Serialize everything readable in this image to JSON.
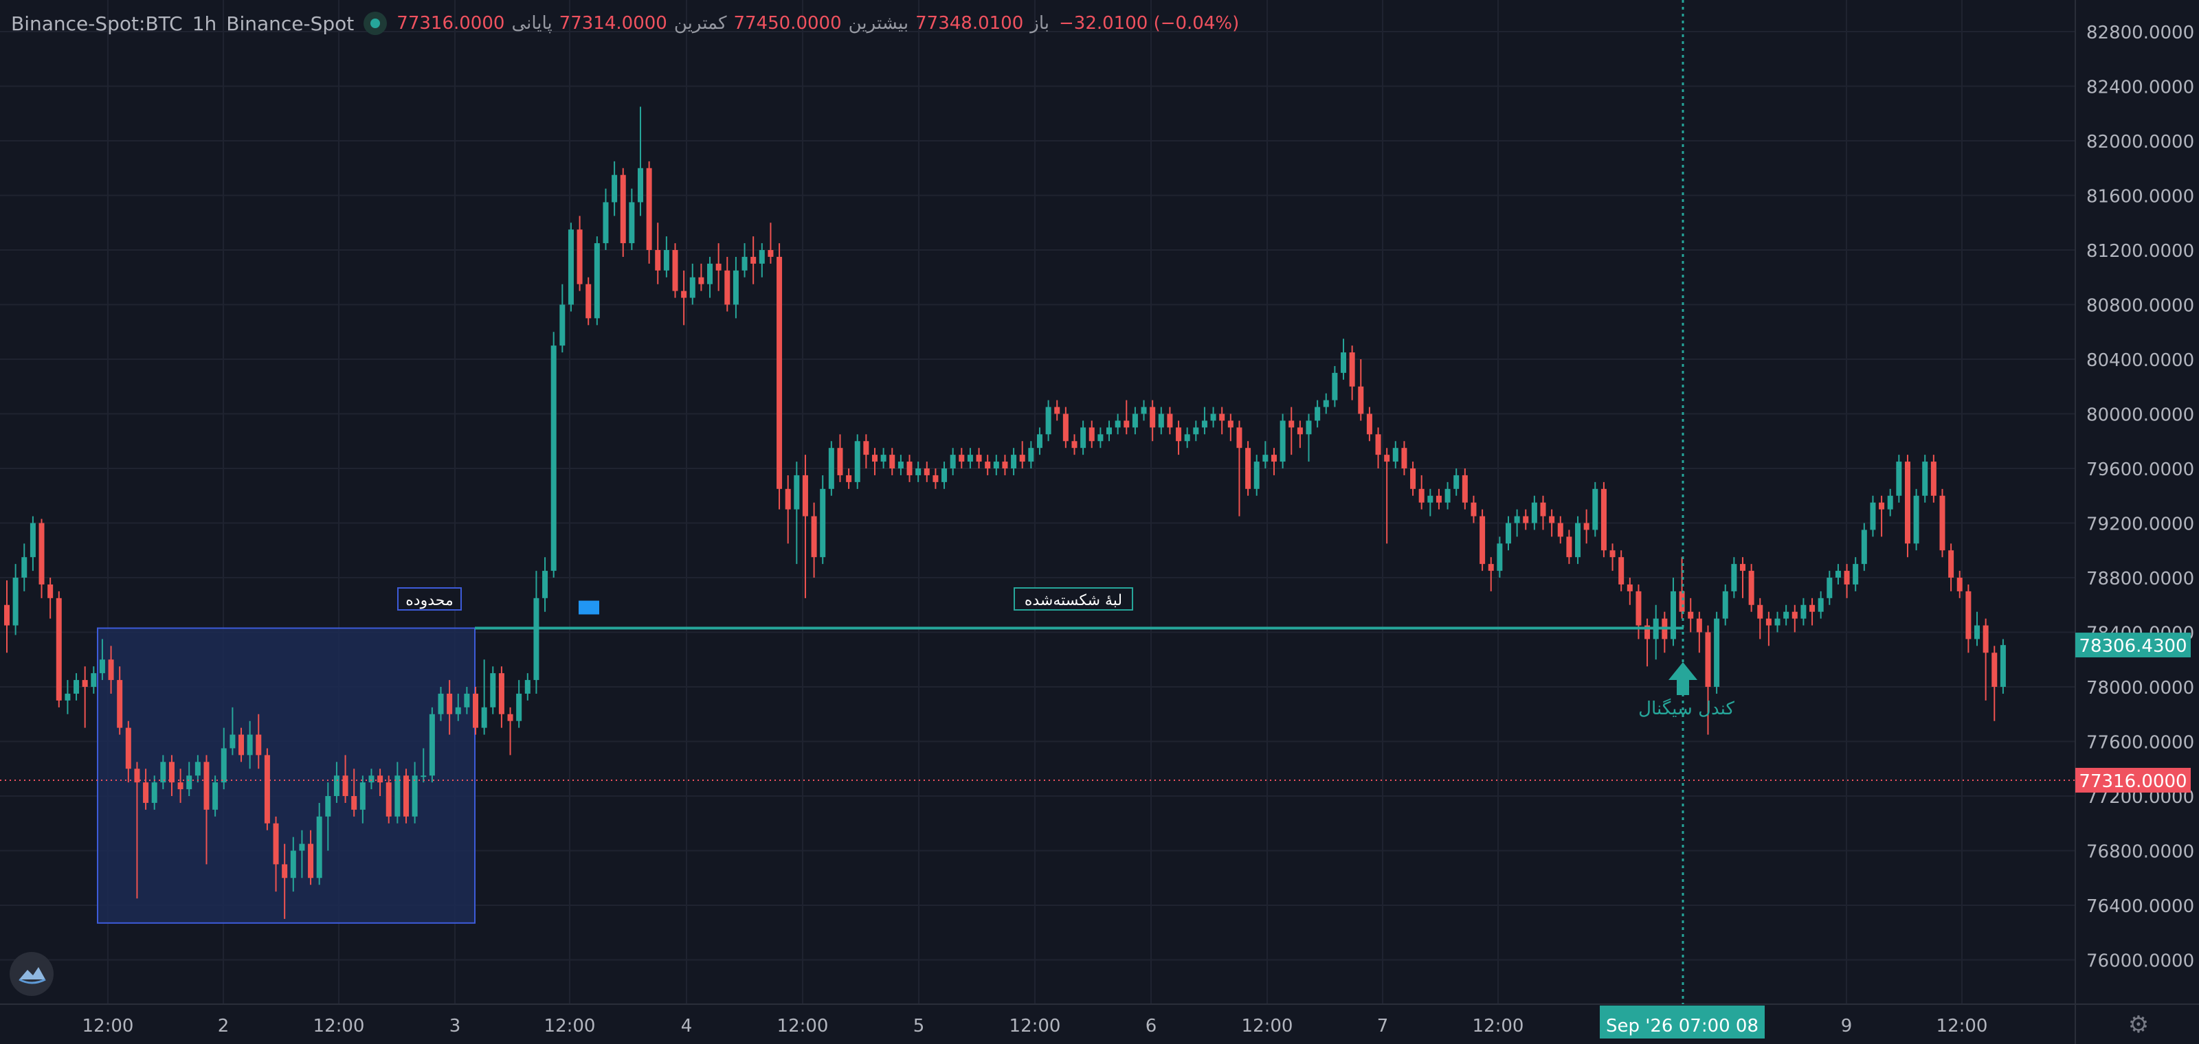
{
  "legend": {
    "symbol": "Binance-Spot:BTC",
    "interval": "1h",
    "exchange": "Binance-Spot",
    "open_label": "باز",
    "open": "77348.0100",
    "high_label": "بیشترین",
    "high": "77450.0000",
    "low_label": "کمترین",
    "low": "77314.0000",
    "close_label": "پایانی",
    "close": "77316.0000",
    "change": "−32.0100 (−0.04%)"
  },
  "colors": {
    "background": "#131722",
    "up": "#26a69a",
    "down": "#ef5350",
    "box_fill": "#1c2a52",
    "box_border": "#3d5bd9",
    "level_line": "#26a69a",
    "grid": "#1f2330",
    "axis_text": "#b2b5be",
    "price_label_red": "#f0525f",
    "price_label_green": "#26a69a"
  },
  "icons": {
    "settings": "gear-icon",
    "logo": "brand-logo-icon"
  },
  "chart_data": {
    "type": "candlestick",
    "y_ticks": [
      82800,
      82400,
      82000,
      81600,
      81200,
      80800,
      80400,
      80000,
      79600,
      79200,
      78800,
      78400,
      78000,
      77600,
      77200,
      76800,
      76400,
      76000
    ],
    "y_tick_labels": [
      "82800.0000",
      "82400.0000",
      "82000.0000",
      "81600.0000",
      "81200.0000",
      "80800.0000",
      "80400.0000",
      "80000.0000",
      "79600.0000",
      "79200.0000",
      "78800.0000",
      "78400.0000",
      "78000.0000",
      "77600.0000",
      "77200.0000",
      "76800.0000",
      "76400.0000",
      "76000.0000"
    ],
    "x_ticks": [
      "12:00",
      "2",
      "12:00",
      "3",
      "12:00",
      "4",
      "12:00",
      "5",
      "12:00",
      "6",
      "12:00",
      "7",
      "12:00",
      "9",
      "12:00"
    ],
    "candles": [
      [
        78600,
        78450,
        78780,
        78250
      ],
      [
        78450,
        78800,
        78900,
        78380
      ],
      [
        78800,
        78950,
        79050,
        78700
      ],
      [
        78950,
        79200,
        79250,
        78850
      ],
      [
        79200,
        78750,
        79230,
        78650
      ],
      [
        78750,
        78650,
        78800,
        78500
      ],
      [
        78650,
        77900,
        78700,
        77850
      ],
      [
        77900,
        77950,
        78050,
        77800
      ],
      [
        77950,
        78050,
        78100,
        77900
      ],
      [
        78050,
        78000,
        78150,
        77700
      ],
      [
        78000,
        78100,
        78150,
        77950
      ],
      [
        78100,
        78200,
        78350,
        78050
      ],
      [
        78200,
        78050,
        78300,
        77950
      ],
      [
        78050,
        77700,
        78150,
        77650
      ],
      [
        77700,
        77400,
        77750,
        77300
      ],
      [
        77400,
        77300,
        77450,
        76450
      ],
      [
        77300,
        77150,
        77400,
        77100
      ],
      [
        77150,
        77300,
        77350,
        77100
      ],
      [
        77300,
        77450,
        77500,
        77250
      ],
      [
        77450,
        77300,
        77500,
        77200
      ],
      [
        77300,
        77250,
        77400,
        77150
      ],
      [
        77250,
        77350,
        77450,
        77200
      ],
      [
        77350,
        77450,
        77500,
        77300
      ],
      [
        77450,
        77100,
        77500,
        76700
      ],
      [
        77100,
        77300,
        77350,
        77050
      ],
      [
        77300,
        77550,
        77700,
        77250
      ],
      [
        77550,
        77650,
        77850,
        77500
      ],
      [
        77650,
        77500,
        77700,
        77450
      ],
      [
        77500,
        77650,
        77750,
        77400
      ],
      [
        77650,
        77500,
        77800,
        77400
      ],
      [
        77500,
        77000,
        77550,
        76950
      ],
      [
        77000,
        76700,
        77050,
        76500
      ],
      [
        76700,
        76600,
        76850,
        76300
      ],
      [
        76600,
        76800,
        76900,
        76500
      ],
      [
        76800,
        76850,
        76950,
        76600
      ],
      [
        76850,
        76600,
        76950,
        76550
      ],
      [
        76600,
        77050,
        77150,
        76550
      ],
      [
        77050,
        77200,
        77300,
        76800
      ],
      [
        77200,
        77350,
        77450,
        77150
      ],
      [
        77350,
        77200,
        77500,
        77150
      ],
      [
        77200,
        77100,
        77400,
        77050
      ],
      [
        77100,
        77300,
        77350,
        77000
      ],
      [
        77300,
        77350,
        77400,
        77250
      ],
      [
        77350,
        77300,
        77400,
        77200
      ],
      [
        77300,
        77050,
        77350,
        77000
      ],
      [
        77050,
        77350,
        77450,
        77000
      ],
      [
        77350,
        77050,
        77400,
        77000
      ],
      [
        77050,
        77350,
        77450,
        77000
      ],
      [
        77350,
        77350,
        77550,
        77300
      ],
      [
        77350,
        77800,
        77850,
        77300
      ],
      [
        77800,
        77950,
        78000,
        77750
      ],
      [
        77950,
        77800,
        78050,
        77650
      ],
      [
        77800,
        77850,
        77950,
        77750
      ],
      [
        77850,
        77950,
        78000,
        77800
      ],
      [
        77950,
        77700,
        78000,
        77650
      ],
      [
        77700,
        77850,
        78200,
        77650
      ],
      [
        77850,
        78100,
        78150,
        77800
      ],
      [
        78100,
        77800,
        78150,
        77700
      ],
      [
        77800,
        77750,
        77850,
        77500
      ],
      [
        77750,
        77950,
        78050,
        77700
      ],
      [
        77950,
        78050,
        78100,
        77900
      ],
      [
        78050,
        78650,
        78850,
        77950
      ],
      [
        78650,
        78850,
        78950,
        78550
      ],
      [
        78850,
        80500,
        80600,
        78800
      ],
      [
        80500,
        80800,
        80950,
        80450
      ],
      [
        80800,
        81350,
        81400,
        80750
      ],
      [
        81350,
        80950,
        81450,
        80900
      ],
      [
        80950,
        80700,
        81000,
        80650
      ],
      [
        80700,
        81250,
        81300,
        80650
      ],
      [
        81250,
        81550,
        81650,
        81200
      ],
      [
        81550,
        81750,
        81850,
        81450
      ],
      [
        81750,
        81250,
        81800,
        81150
      ],
      [
        81250,
        81550,
        81650,
        81200
      ],
      [
        81550,
        81800,
        82250,
        81450
      ],
      [
        81800,
        81200,
        81850,
        81100
      ],
      [
        81200,
        81050,
        81400,
        80950
      ],
      [
        81050,
        81200,
        81300,
        81000
      ],
      [
        81200,
        80900,
        81250,
        80850
      ],
      [
        80900,
        80850,
        81050,
        80650
      ],
      [
        80850,
        81000,
        81100,
        80800
      ],
      [
        81000,
        80950,
        81100,
        80900
      ],
      [
        80950,
        81100,
        81150,
        80850
      ],
      [
        81100,
        81050,
        81250,
        80900
      ],
      [
        81050,
        80800,
        81150,
        80750
      ],
      [
        80800,
        81050,
        81150,
        80700
      ],
      [
        81050,
        81150,
        81250,
        81000
      ],
      [
        81150,
        81100,
        81300,
        80950
      ],
      [
        81100,
        81200,
        81250,
        81000
      ],
      [
        81200,
        81150,
        81400,
        81100
      ],
      [
        81150,
        79450,
        81250,
        79300
      ],
      [
        79450,
        79300,
        79550,
        79050
      ],
      [
        79300,
        79550,
        79650,
        78900
      ],
      [
        79550,
        79250,
        79700,
        78650
      ],
      [
        79250,
        78950,
        79350,
        78800
      ],
      [
        78950,
        79450,
        79550,
        78900
      ],
      [
        79450,
        79750,
        79800,
        79400
      ],
      [
        79750,
        79550,
        79850,
        79500
      ],
      [
        79550,
        79500,
        79600,
        79450
      ],
      [
        79500,
        79800,
        79850,
        79450
      ],
      [
        79800,
        79700,
        79850,
        79600
      ],
      [
        79700,
        79650,
        79750,
        79550
      ],
      [
        79650,
        79700,
        79750,
        79600
      ],
      [
        79700,
        79600,
        79750,
        79550
      ],
      [
        79600,
        79650,
        79700,
        79550
      ],
      [
        79650,
        79550,
        79700,
        79500
      ],
      [
        79550,
        79600,
        79650,
        79500
      ],
      [
        79600,
        79550,
        79650,
        79500
      ],
      [
        79550,
        79500,
        79600,
        79450
      ],
      [
        79500,
        79600,
        79650,
        79450
      ],
      [
        79600,
        79700,
        79750,
        79550
      ],
      [
        79700,
        79650,
        79750,
        79600
      ],
      [
        79650,
        79700,
        79750,
        79600
      ],
      [
        79700,
        79650,
        79750,
        79600
      ],
      [
        79650,
        79600,
        79700,
        79550
      ],
      [
        79600,
        79650,
        79700,
        79550
      ],
      [
        79650,
        79600,
        79700,
        79550
      ],
      [
        79600,
        79700,
        79750,
        79550
      ],
      [
        79700,
        79650,
        79800,
        79600
      ],
      [
        79650,
        79750,
        79800,
        79600
      ],
      [
        79750,
        79850,
        79900,
        79700
      ],
      [
        79850,
        80050,
        80100,
        79800
      ],
      [
        80050,
        80000,
        80100,
        79950
      ],
      [
        80000,
        79800,
        80050,
        79750
      ],
      [
        79800,
        79750,
        79850,
        79700
      ],
      [
        79750,
        79900,
        79950,
        79700
      ],
      [
        79900,
        79800,
        79950,
        79750
      ],
      [
        79800,
        79850,
        79900,
        79750
      ],
      [
        79850,
        79900,
        79950,
        79800
      ],
      [
        79900,
        79950,
        80000,
        79850
      ],
      [
        79950,
        79900,
        80100,
        79850
      ],
      [
        79900,
        80000,
        80050,
        79850
      ],
      [
        80000,
        80050,
        80100,
        79950
      ],
      [
        80050,
        79900,
        80100,
        79800
      ],
      [
        79900,
        80000,
        80050,
        79850
      ],
      [
        80000,
        79900,
        80050,
        79850
      ],
      [
        79900,
        79800,
        79950,
        79700
      ],
      [
        79800,
        79850,
        79900,
        79750
      ],
      [
        79850,
        79900,
        79950,
        79800
      ],
      [
        79900,
        79950,
        80050,
        79850
      ],
      [
        79950,
        80000,
        80050,
        79900
      ],
      [
        80000,
        79950,
        80050,
        79850
      ],
      [
        79950,
        79900,
        80000,
        79800
      ],
      [
        79900,
        79750,
        79950,
        79250
      ],
      [
        79750,
        79450,
        79800,
        79400
      ],
      [
        79450,
        79650,
        79700,
        79400
      ],
      [
        79650,
        79700,
        79800,
        79600
      ],
      [
        79700,
        79650,
        79750,
        79550
      ],
      [
        79650,
        79950,
        80000,
        79600
      ],
      [
        79950,
        79900,
        80050,
        79700
      ],
      [
        79900,
        79850,
        79950,
        79750
      ],
      [
        79850,
        79950,
        80000,
        79650
      ],
      [
        79950,
        80050,
        80100,
        79900
      ],
      [
        80050,
        80100,
        80150,
        80000
      ],
      [
        80100,
        80300,
        80350,
        80050
      ],
      [
        80300,
        80450,
        80550,
        80250
      ],
      [
        80450,
        80200,
        80500,
        80100
      ],
      [
        80200,
        80000,
        80400,
        79950
      ],
      [
        80000,
        79850,
        80050,
        79800
      ],
      [
        79850,
        79700,
        79900,
        79600
      ],
      [
        79700,
        79650,
        79750,
        79050
      ],
      [
        79650,
        79750,
        79800,
        79600
      ],
      [
        79750,
        79600,
        79800,
        79550
      ],
      [
        79600,
        79450,
        79650,
        79400
      ],
      [
        79450,
        79350,
        79550,
        79300
      ],
      [
        79350,
        79400,
        79450,
        79250
      ],
      [
        79400,
        79350,
        79450,
        79300
      ],
      [
        79350,
        79450,
        79500,
        79300
      ],
      [
        79450,
        79550,
        79600,
        79400
      ],
      [
        79550,
        79350,
        79600,
        79300
      ],
      [
        79350,
        79250,
        79400,
        79200
      ],
      [
        79250,
        78900,
        79300,
        78850
      ],
      [
        78900,
        78850,
        78950,
        78700
      ],
      [
        78850,
        79050,
        79100,
        78800
      ],
      [
        79050,
        79200,
        79250,
        79000
      ],
      [
        79200,
        79250,
        79300,
        79100
      ],
      [
        79250,
        79200,
        79300,
        79150
      ],
      [
        79200,
        79350,
        79400,
        79150
      ],
      [
        79350,
        79250,
        79400,
        79150
      ],
      [
        79250,
        79200,
        79300,
        79100
      ],
      [
        79200,
        79100,
        79250,
        79050
      ],
      [
        79100,
        78950,
        79150,
        78900
      ],
      [
        78950,
        79200,
        79250,
        78900
      ],
      [
        79200,
        79150,
        79300,
        79050
      ],
      [
        79150,
        79450,
        79500,
        79100
      ],
      [
        79450,
        79000,
        79500,
        78950
      ],
      [
        79000,
        78950,
        79050,
        78850
      ],
      [
        78950,
        78750,
        79000,
        78700
      ],
      [
        78750,
        78700,
        78800,
        78600
      ],
      [
        78700,
        78450,
        78750,
        78350
      ],
      [
        78450,
        78350,
        78500,
        78150
      ],
      [
        78350,
        78500,
        78600,
        78200
      ],
      [
        78500,
        78350,
        78550,
        78250
      ],
      [
        78350,
        78700,
        78800,
        78300
      ],
      [
        78700,
        78550,
        78950,
        78500
      ],
      [
        78550,
        78500,
        78650,
        78400
      ],
      [
        78500,
        78400,
        78550,
        78250
      ],
      [
        78400,
        78000,
        78450,
        77650
      ],
      [
        78000,
        78500,
        78550,
        77950
      ],
      [
        78500,
        78700,
        78750,
        78450
      ],
      [
        78700,
        78900,
        78950,
        78650
      ],
      [
        78900,
        78850,
        78950,
        78650
      ],
      [
        78850,
        78600,
        78900,
        78550
      ],
      [
        78600,
        78500,
        78650,
        78350
      ],
      [
        78500,
        78450,
        78550,
        78300
      ],
      [
        78450,
        78500,
        78550,
        78400
      ],
      [
        78500,
        78550,
        78600,
        78450
      ],
      [
        78550,
        78500,
        78600,
        78400
      ],
      [
        78500,
        78600,
        78650,
        78450
      ],
      [
        78600,
        78550,
        78650,
        78450
      ],
      [
        78550,
        78650,
        78700,
        78500
      ],
      [
        78650,
        78800,
        78850,
        78600
      ],
      [
        78800,
        78850,
        78900,
        78750
      ],
      [
        78850,
        78750,
        78900,
        78650
      ],
      [
        78750,
        78900,
        78950,
        78700
      ],
      [
        78900,
        79150,
        79200,
        78850
      ],
      [
        79150,
        79350,
        79400,
        79100
      ],
      [
        79350,
        79300,
        79400,
        79100
      ],
      [
        79300,
        79400,
        79450,
        79250
      ],
      [
        79400,
        79650,
        79700,
        79350
      ],
      [
        79650,
        79050,
        79700,
        78950
      ],
      [
        79050,
        79400,
        79450,
        79000
      ],
      [
        79400,
        79650,
        79700,
        79350
      ],
      [
        79650,
        79400,
        79700,
        79350
      ],
      [
        79400,
        79000,
        79450,
        78950
      ],
      [
        79000,
        78800,
        79050,
        78700
      ],
      [
        78800,
        78700,
        78850,
        78650
      ],
      [
        78700,
        78350,
        78750,
        78250
      ],
      [
        78350,
        78450,
        78550,
        78300
      ],
      [
        78450,
        78250,
        78500,
        77900
      ],
      [
        78250,
        78000,
        78300,
        77750
      ],
      [
        78000,
        78306,
        78350,
        77950
      ]
    ],
    "level": 78430,
    "last_price": 77316,
    "current_price": 78306.43,
    "last_price_label": "77316.0000",
    "current_price_label": "78306.4300",
    "annotations": {
      "range_label": "محدوده",
      "broken_edge_label": "لبهٔ شکسته‌شده",
      "signal_label": "کندل سیگنال"
    },
    "crosshair_time": "Sep '26   07:00 08"
  }
}
